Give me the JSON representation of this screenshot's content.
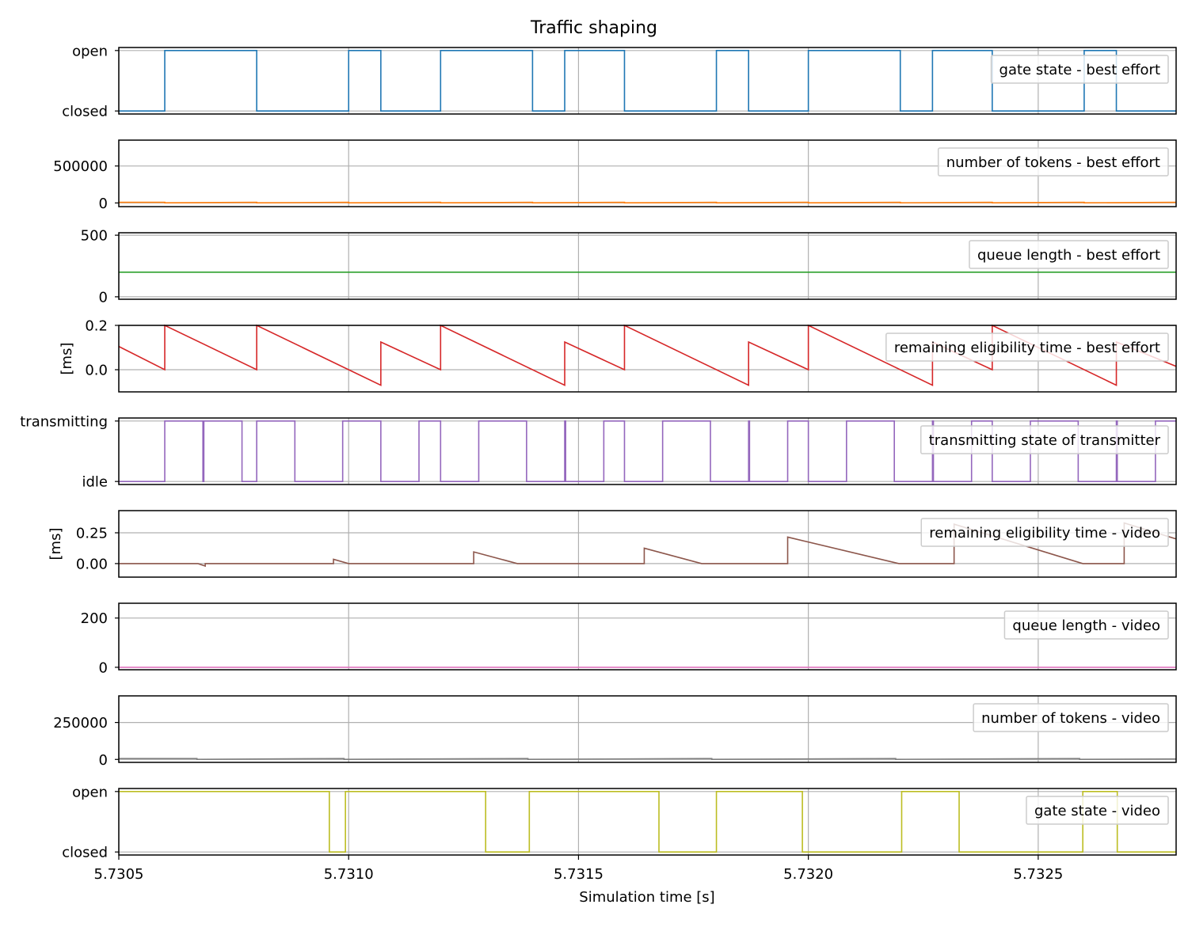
{
  "chart_data": {
    "type": "line",
    "title": "Traffic shaping",
    "xlabel": "Simulation time [s]",
    "xlim": [
      5.7305,
      5.7328
    ],
    "xticks": [
      5.7305,
      5.731,
      5.7315,
      5.732,
      5.7325
    ],
    "xtick_labels": [
      "5.7305",
      "5.7310",
      "5.7315",
      "5.7320",
      "5.7325"
    ],
    "grid": true,
    "legend_position": "upper right",
    "panels": [
      {
        "name": "gate state - best effort",
        "color": "#1f77b4",
        "ylabel": "",
        "ylim": [
          -0.05,
          1.05
        ],
        "yticks": [
          0,
          1
        ],
        "ytick_labels": [
          "closed",
          "open"
        ],
        "mode": "step",
        "x": [
          5.7305,
          5.7306,
          5.7306,
          5.7308,
          5.7308,
          5.731,
          5.731,
          5.73107,
          5.73107,
          5.7312,
          5.7312,
          5.7314,
          5.7314,
          5.73147,
          5.73147,
          5.7316,
          5.7316,
          5.7318,
          5.7318,
          5.73187,
          5.73187,
          5.732,
          5.732,
          5.7322,
          5.7322,
          5.73227,
          5.73227,
          5.7324,
          5.7324,
          5.7326,
          5.7326,
          5.73267,
          5.73267,
          5.7328
        ],
        "y": [
          0,
          0,
          1,
          1,
          0,
          0,
          1,
          1,
          0,
          0,
          1,
          1,
          0,
          0,
          1,
          1,
          0,
          0,
          1,
          1,
          0,
          0,
          1,
          1,
          0,
          0,
          1,
          1,
          0,
          0,
          1,
          1,
          0,
          0
        ]
      },
      {
        "name": "number of tokens - best effort",
        "color": "#ff7f0e",
        "ylabel": "",
        "ylim": [
          -50000,
          850000
        ],
        "yticks": [
          0,
          500000
        ],
        "ytick_labels": [
          "0",
          "500000"
        ],
        "mode": "line",
        "x": [
          5.7305,
          5.7306,
          5.7306,
          5.7308,
          5.7308,
          5.731,
          5.731,
          5.7312,
          5.7312,
          5.7314,
          5.7314,
          5.7316,
          5.7316,
          5.7318,
          5.7318,
          5.732,
          5.732,
          5.7322,
          5.7322,
          5.7324,
          5.7324,
          5.7326,
          5.7326,
          5.7328
        ],
        "y": [
          8000,
          8000,
          2000,
          8000,
          2000,
          8000,
          2000,
          8000,
          2000,
          8000,
          2000,
          8000,
          2000,
          8000,
          2000,
          8000,
          2000,
          8000,
          2000,
          8000,
          2000,
          8000,
          2000,
          8000
        ]
      },
      {
        "name": "queue length - best effort",
        "color": "#2ca02c",
        "ylabel": "",
        "ylim": [
          -20,
          520
        ],
        "yticks": [
          0,
          500
        ],
        "ytick_labels": [
          "0",
          "500"
        ],
        "mode": "line",
        "x": [
          5.7305,
          5.7328
        ],
        "y": [
          200,
          200
        ]
      },
      {
        "name": "remaining eligibility time - best effort",
        "color": "#d62728",
        "ylabel": "[ms]",
        "ylim": [
          -0.1,
          0.2
        ],
        "yticks": [
          0,
          0.2
        ],
        "ytick_labels": [
          "0.0",
          "0.2"
        ],
        "mode": "line",
        "x": [
          5.7305,
          5.7306,
          5.7306,
          5.7308,
          5.7308,
          5.73107,
          5.73107,
          5.7312,
          5.7312,
          5.73147,
          5.73147,
          5.7316,
          5.7316,
          5.73187,
          5.73187,
          5.732,
          5.732,
          5.73227,
          5.73227,
          5.7324,
          5.7324,
          5.73267,
          5.73267,
          5.7328
        ],
        "y": [
          0.105,
          0.0,
          0.2,
          0.0,
          0.2,
          -0.07,
          0.125,
          0.0,
          0.2,
          -0.07,
          0.125,
          0.0,
          0.2,
          -0.07,
          0.125,
          0.0,
          0.2,
          -0.07,
          0.125,
          0.0,
          0.2,
          -0.07,
          0.125,
          0.015
        ]
      },
      {
        "name": "transmitting state of transmitter",
        "color": "#9467bd",
        "ylabel": "",
        "ylim": [
          -0.05,
          1.05
        ],
        "yticks": [
          0,
          1
        ],
        "ytick_labels": [
          "idle",
          "transmitting"
        ],
        "mode": "step",
        "x": [
          5.7305,
          5.7306,
          5.7306,
          5.730683,
          5.730683,
          5.730685,
          5.730685,
          5.730768,
          5.730768,
          5.7308,
          5.7308,
          5.730883,
          5.730883,
          5.730987,
          5.730987,
          5.73107,
          5.73107,
          5.731153,
          5.731153,
          5.7312,
          5.7312,
          5.731283,
          5.731283,
          5.731387,
          5.731387,
          5.73147,
          5.73147,
          5.731472,
          5.731472,
          5.731555,
          5.731555,
          5.7316,
          5.7316,
          5.731683,
          5.731683,
          5.731787,
          5.731787,
          5.73187,
          5.73187,
          5.731872,
          5.731872,
          5.731955,
          5.731955,
          5.732,
          5.732,
          5.732083,
          5.732083,
          5.732187,
          5.732187,
          5.73227,
          5.73227,
          5.732272,
          5.732272,
          5.732355,
          5.732355,
          5.7324,
          5.7324,
          5.732483,
          5.732483,
          5.732587,
          5.732587,
          5.73267,
          5.73267,
          5.732672,
          5.732672,
          5.732755,
          5.732755,
          5.7328
        ],
        "y": [
          0,
          0,
          1,
          1,
          0,
          0,
          1,
          1,
          0,
          0,
          1,
          1,
          0,
          0,
          1,
          1,
          0,
          0,
          1,
          1,
          0,
          0,
          1,
          1,
          0,
          0,
          1,
          1,
          0,
          0,
          1,
          1,
          0,
          0,
          1,
          1,
          0,
          0,
          1,
          1,
          0,
          0,
          1,
          1,
          0,
          0,
          1,
          1,
          0,
          0,
          1,
          1,
          0,
          0,
          1,
          1,
          0,
          0,
          1,
          1,
          0,
          0,
          1,
          1,
          0,
          0,
          1,
          1
        ]
      },
      {
        "name": "remaining eligibility time - video",
        "color": "#8c564b",
        "ylabel": "[ms]",
        "ylim": [
          -0.11,
          0.43
        ],
        "yticks": [
          0,
          0.25
        ],
        "ytick_labels": [
          "0.00",
          "0.25"
        ],
        "mode": "line",
        "x": [
          5.7305,
          5.730672,
          5.730688,
          5.730688,
          5.730967,
          5.730967,
          5.731,
          5.731272,
          5.731272,
          5.731367,
          5.731643,
          5.731643,
          5.731768,
          5.731955,
          5.731955,
          5.732197,
          5.732317,
          5.732317,
          5.732597,
          5.732687,
          5.732687,
          5.7328
        ],
        "y": [
          0.0,
          0.0,
          -0.02,
          0.0,
          0.0,
          0.035,
          0.0,
          0.0,
          0.095,
          0.0,
          0.0,
          0.125,
          0.0,
          0.0,
          0.215,
          0.0,
          0.0,
          0.32,
          0.0,
          0.0,
          0.33,
          0.2
        ]
      },
      {
        "name": "queue length - video",
        "color": "#e377c2",
        "ylabel": "",
        "ylim": [
          -10,
          260
        ],
        "yticks": [
          0,
          200
        ],
        "ytick_labels": [
          "0",
          "200"
        ],
        "mode": "line",
        "x": [
          5.7305,
          5.7328
        ],
        "y": [
          0,
          0
        ]
      },
      {
        "name": "number of tokens - video",
        "color": "#7f7f7f",
        "ylabel": "",
        "ylim": [
          -20000,
          430000
        ],
        "yticks": [
          0,
          250000
        ],
        "ytick_labels": [
          "0",
          "250000"
        ],
        "mode": "line",
        "x": [
          5.7305,
          5.73067,
          5.73067,
          5.73099,
          5.73099,
          5.73139,
          5.73139,
          5.73179,
          5.73179,
          5.73219,
          5.73219,
          5.73259,
          5.73259,
          5.7328
        ],
        "y": [
          6000,
          6000,
          500,
          6000,
          500,
          6000,
          500,
          6000,
          500,
          6000,
          500,
          6000,
          500,
          3000
        ]
      },
      {
        "name": "gate state - video",
        "color": "#bcbd22",
        "ylabel": "",
        "ylim": [
          -0.05,
          1.05
        ],
        "yticks": [
          0,
          1
        ],
        "ytick_labels": [
          "closed",
          "open"
        ],
        "mode": "step",
        "x": [
          5.7305,
          5.730958,
          5.730958,
          5.730993,
          5.730993,
          5.731298,
          5.731298,
          5.731393,
          5.731393,
          5.731675,
          5.731675,
          5.7318,
          5.7318,
          5.731987,
          5.731987,
          5.732203,
          5.732203,
          5.732328,
          5.732328,
          5.732597,
          5.732597,
          5.732672,
          5.732672,
          5.7328
        ],
        "y": [
          1,
          1,
          0,
          0,
          1,
          1,
          0,
          0,
          1,
          1,
          0,
          0,
          1,
          1,
          0,
          0,
          1,
          1,
          0,
          0,
          1,
          1,
          0,
          0
        ]
      }
    ]
  }
}
